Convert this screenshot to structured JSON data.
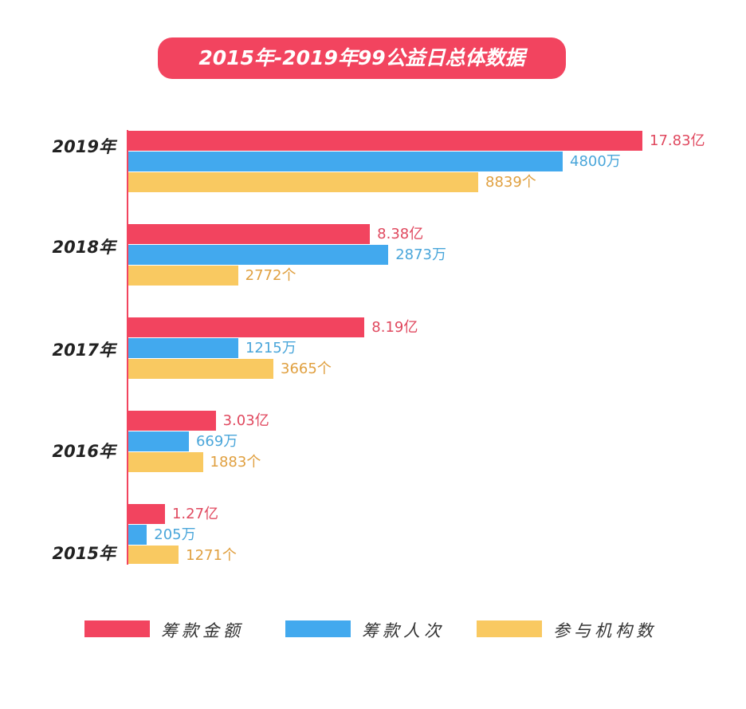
{
  "chart_data": {
    "type": "bar",
    "orientation": "horizontal",
    "title": "2015年-2019年99公益日总体数据",
    "categories": [
      "2019年",
      "2018年",
      "2017年",
      "2016年",
      "2015年"
    ],
    "series": [
      {
        "name": "筹款金额",
        "values": [
          17.83,
          8.38,
          8.19,
          3.03,
          1.27
        ],
        "labels": [
          "17.83亿",
          "8.38亿",
          "8.19亿",
          "3.03亿",
          "1.27亿"
        ],
        "color": "#F2445F",
        "label_color": "#E0495F"
      },
      {
        "name": "筹款人次",
        "values": [
          4800,
          2873,
          1215,
          669,
          205
        ],
        "labels": [
          "4800万",
          "2873万",
          "1215万",
          "669万",
          "205万"
        ],
        "color": "#42A9EE",
        "label_color": "#4AA6DA"
      },
      {
        "name": "参与机构数",
        "values": [
          8839,
          2772,
          3665,
          1883,
          1271
        ],
        "labels": [
          "8839个",
          "2772个",
          "3665个",
          "1883个",
          "1271个"
        ],
        "color": "#F9C961",
        "label_color": "#E0A040"
      }
    ],
    "legend": "bottom",
    "grid": false
  }
}
